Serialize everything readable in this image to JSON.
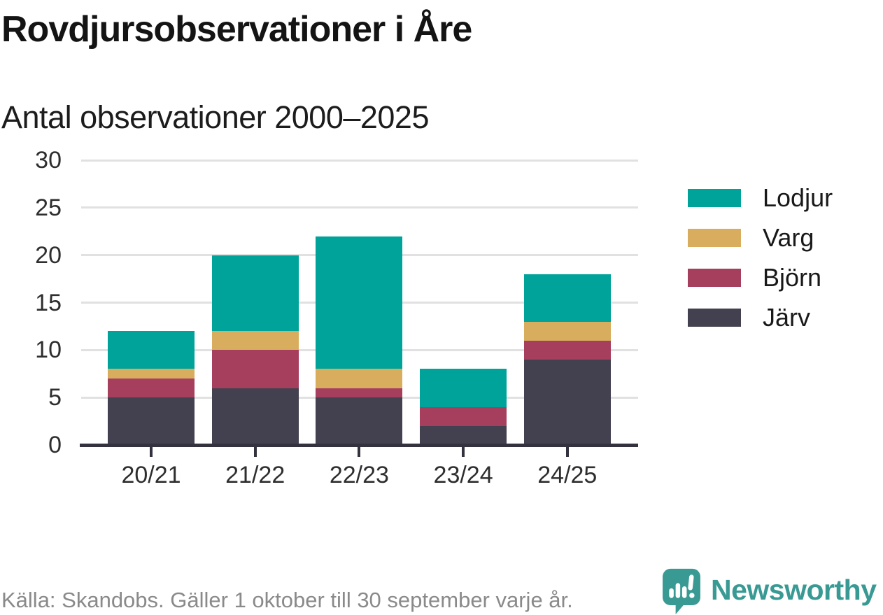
{
  "header": {
    "title": "Rovdjursobservationer i Åre",
    "subtitle": "Antal observationer 2000–2025"
  },
  "chart_data": {
    "type": "bar",
    "stacked": true,
    "title": "Rovdjursobservationer i Åre",
    "subtitle": "Antal observationer 2000–2025",
    "categories": [
      "20/21",
      "21/22",
      "22/23",
      "23/24",
      "24/25"
    ],
    "series": [
      {
        "name": "Järv",
        "color": "#434050",
        "values": [
          5,
          6,
          5,
          2,
          9
        ]
      },
      {
        "name": "Björn",
        "color": "#a63f5e",
        "values": [
          2,
          4,
          1,
          2,
          2
        ]
      },
      {
        "name": "Varg",
        "color": "#d8ae5e",
        "values": [
          1,
          2,
          2,
          0,
          2
        ]
      },
      {
        "name": "Lodjur",
        "color": "#00a39a",
        "values": [
          4,
          8,
          14,
          4,
          5
        ]
      }
    ],
    "stack_order_bottom_to_top": [
      "Järv",
      "Björn",
      "Varg",
      "Lodjur"
    ],
    "legend_order_top_to_bottom": [
      "Lodjur",
      "Varg",
      "Björn",
      "Järv"
    ],
    "legend_position": "right",
    "xlabel": "",
    "ylabel": "",
    "ylim": [
      0,
      30
    ],
    "yticks": [
      0,
      5,
      10,
      15,
      20,
      25,
      30
    ],
    "grid": "horizontal",
    "gridline_color": "#e1e1e1",
    "axis_color": "#35323f"
  },
  "footer": {
    "source_text": "Källa: Skandobs. Gäller 1 oktober till 30 september varje år.",
    "brand": "Newsworthy",
    "brand_color": "#399a94",
    "brand_icon": "newsworthy-speech-bubble-chart-icon"
  }
}
